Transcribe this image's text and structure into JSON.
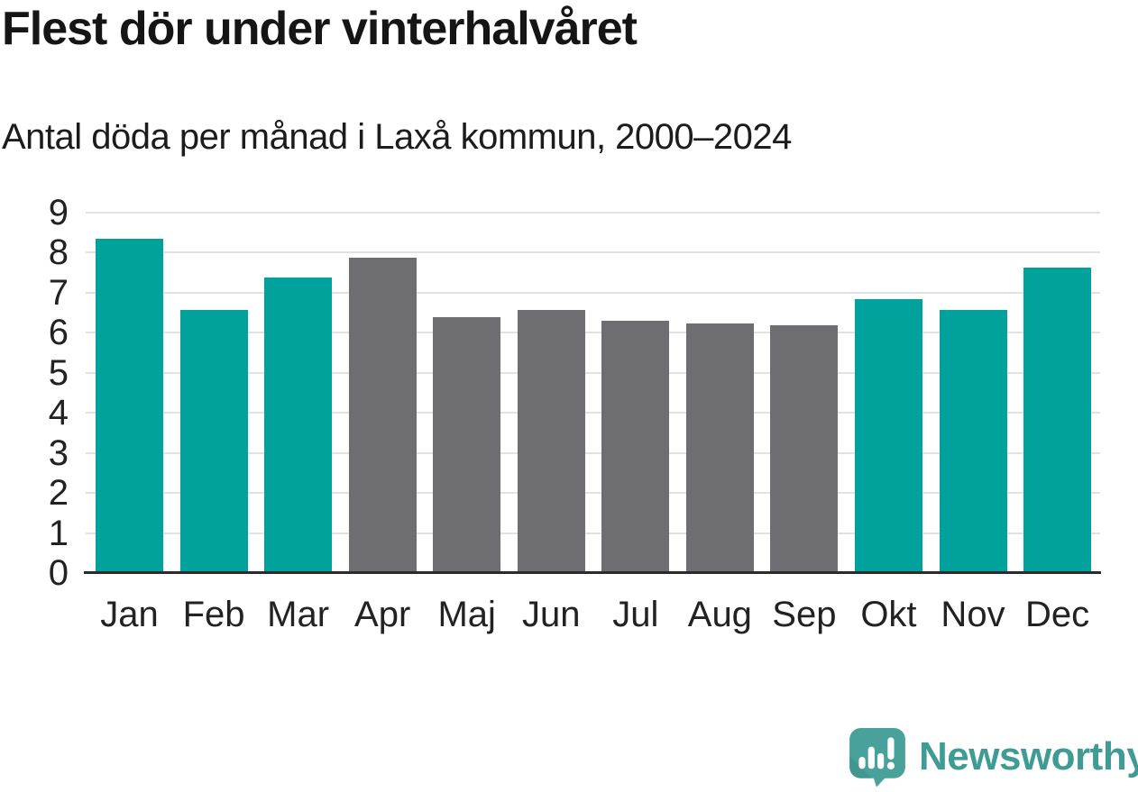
{
  "chart_data": {
    "type": "bar",
    "title": "Flest dör under vinterhalvåret",
    "subtitle": "Antal döda per månad i Laxå kommun, 2000–2024",
    "categories": [
      "Jan",
      "Feb",
      "Mar",
      "Apr",
      "Maj",
      "Jun",
      "Jul",
      "Aug",
      "Sep",
      "Okt",
      "Nov",
      "Dec"
    ],
    "values": [
      8.35,
      6.57,
      7.38,
      7.88,
      6.4,
      6.56,
      6.29,
      6.24,
      6.19,
      6.85,
      6.57,
      7.62
    ],
    "highlighted": [
      true,
      true,
      true,
      false,
      false,
      false,
      false,
      false,
      false,
      true,
      true,
      true
    ],
    "xlabel": "",
    "ylabel": "",
    "ylim": [
      0,
      9
    ],
    "yticks": [
      0,
      1,
      2,
      3,
      4,
      5,
      6,
      7,
      8,
      9
    ],
    "grid": true,
    "legend": "none",
    "colors": {
      "highlight": "#00a29b",
      "default": "#6d6d72",
      "gridline": "#e2e2e2",
      "axis": "#2b2b2b",
      "text": "#222222"
    }
  },
  "footer": {
    "brand": "Newsworthy",
    "brand_color": "#3f9c95",
    "logo_icon": "newsworthy-bubble-chart-icon",
    "logo_bubble_color": "#48a29b"
  }
}
